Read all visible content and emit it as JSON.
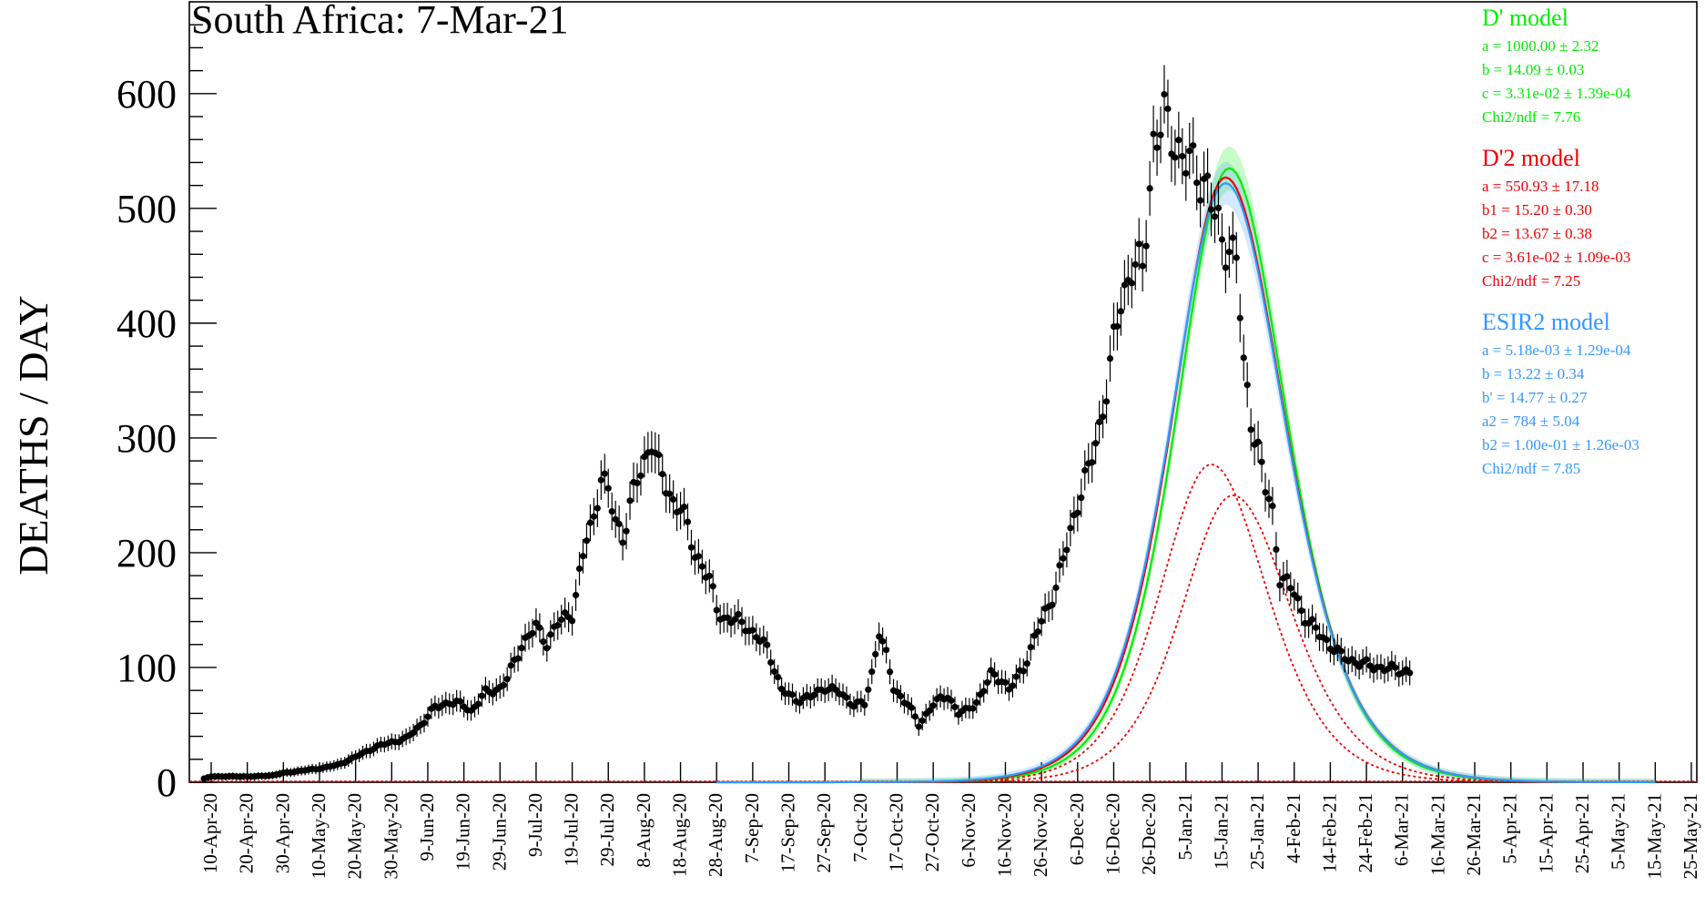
{
  "chart_data": {
    "type": "scatter",
    "title": "South Africa: 7-Mar-21",
    "ylabel": "DEATHS / DAY",
    "xlabel": "",
    "ylim": [
      0,
      680
    ],
    "xlim_days": [
      0,
      410
    ],
    "start_date": "2020-03-31",
    "y_ticks": [
      0,
      100,
      200,
      300,
      400,
      500,
      600
    ],
    "x_tick_labels": [
      "10-Apr-20",
      "20-Apr-20",
      "30-Apr-20",
      "10-May-20",
      "20-May-20",
      "30-May-20",
      "9-Jun-20",
      "19-Jun-20",
      "29-Jun-20",
      "9-Jul-20",
      "19-Jul-20",
      "29-Jul-20",
      "8-Aug-20",
      "18-Aug-20",
      "28-Aug-20",
      "7-Sep-20",
      "17-Sep-20",
      "27-Sep-20",
      "7-Oct-20",
      "17-Oct-20",
      "27-Oct-20",
      "6-Nov-20",
      "16-Nov-20",
      "26-Nov-20",
      "6-Dec-20",
      "16-Dec-20",
      "26-Dec-20",
      "5-Jan-21",
      "15-Jan-21",
      "25-Jan-21",
      "4-Feb-21",
      "14-Feb-21",
      "24-Feb-21",
      "6-Mar-21",
      "16-Mar-21",
      "26-Mar-21",
      "5-Apr-21",
      "15-Apr-21",
      "25-Apr-21",
      "5-May-21",
      "15-May-21",
      "25-May-21"
    ],
    "x_tick_days": [
      10,
      20,
      30,
      40,
      50,
      60,
      70,
      80,
      90,
      100,
      110,
      120,
      130,
      140,
      150,
      160,
      170,
      180,
      190,
      200,
      210,
      220,
      230,
      240,
      250,
      260,
      270,
      280,
      290,
      300,
      310,
      320,
      330,
      340,
      350,
      360,
      370,
      380,
      390,
      400,
      410,
      420
    ],
    "data_anchor_days": [
      8,
      10,
      14,
      18,
      22,
      27,
      30,
      35,
      40,
      45,
      50,
      55,
      60,
      64,
      68,
      72,
      76,
      80,
      82,
      86,
      88,
      90,
      92,
      96,
      100,
      103,
      106,
      110,
      114,
      116,
      118,
      120,
      122,
      124,
      126,
      128,
      130,
      132,
      134,
      138,
      140,
      142,
      144,
      146,
      148,
      150,
      152,
      156,
      158,
      160,
      164,
      166,
      168,
      172,
      176,
      180,
      184,
      188,
      191,
      193,
      195,
      197,
      199,
      201,
      203,
      206,
      210,
      214,
      217,
      219,
      222,
      224,
      226,
      229,
      231,
      235,
      240,
      244,
      247,
      250,
      253,
      256,
      259,
      262,
      265,
      268,
      271,
      274,
      277,
      280,
      282,
      284,
      286,
      288,
      290,
      292,
      294,
      296,
      298,
      300,
      302,
      304,
      306,
      310,
      312,
      314,
      316,
      320,
      323,
      327,
      330,
      334,
      338,
      341,
      342
    ],
    "data_anchor_values": [
      3,
      5,
      5,
      5,
      5,
      6,
      8,
      10,
      12,
      15,
      22,
      30,
      35,
      38,
      50,
      65,
      70,
      67,
      62,
      78,
      80,
      82,
      90,
      120,
      135,
      122,
      138,
      148,
      212,
      230,
      270,
      250,
      228,
      215,
      240,
      262,
      280,
      300,
      272,
      245,
      240,
      220,
      200,
      190,
      175,
      152,
      143,
      140,
      138,
      130,
      117,
      100,
      80,
      72,
      74,
      83,
      78,
      68,
      68,
      95,
      132,
      110,
      82,
      75,
      68,
      50,
      68,
      76,
      60,
      62,
      70,
      80,
      94,
      90,
      80,
      100,
      140,
      170,
      205,
      245,
      270,
      310,
      360,
      420,
      450,
      445,
      560,
      575,
      560,
      540,
      533,
      530,
      520,
      490,
      472,
      470,
      455,
      360,
      320,
      290,
      255,
      235,
      180,
      165,
      150,
      140,
      132,
      120,
      110,
      105,
      102,
      100,
      98,
      97,
      96
    ],
    "models": [
      {
        "name": "D' model",
        "color": "#00ee00",
        "params": [
          "a = 1000.00 ± 2.32",
          "b = 14.09 ± 0.03",
          "c = 3.31e-02 ± 1.39e-04",
          "Chi2/ndf = 7.76"
        ],
        "curve": {
          "amplitude": 535,
          "peak_day": 292,
          "rise_width": 22.5,
          "fall_width": 24.5
        }
      },
      {
        "name": "D'2 model",
        "color": "#ee0000",
        "params": [
          "a = 550.93 ± 17.18",
          "b1 = 15.20 ± 0.30",
          "b2 = 13.67 ± 0.38",
          "c = 3.61e-02 ± 1.09e-03",
          "Chi2/ndf = 7.25"
        ],
        "curve": {
          "amplitude": 527,
          "peak_day": 291,
          "rise_width": 23.0,
          "fall_width": 25.5
        },
        "components": [
          {
            "amplitude": 277,
            "peak_day": 287,
            "rise_width": 22.0,
            "fall_width": 24.0
          },
          {
            "amplitude": 250,
            "peak_day": 293,
            "rise_width": 22.0,
            "fall_width": 25.0
          }
        ]
      },
      {
        "name": "ESIR2 model",
        "color": "#3399ff",
        "params": [
          "a = 5.18e-03 ± 1.29e-04",
          "b = 13.22 ± 0.34",
          "b' = 14.77 ± 0.27",
          "a2 = 784 ± 5.04",
          "b2 = 1.00e-01 ± 1.26e-03",
          "Chi2/ndf = 7.85"
        ],
        "curve": {
          "amplitude": 522,
          "peak_day": 291,
          "rise_width": 23.5,
          "fall_width": 25.5
        }
      }
    ],
    "grid": false,
    "legend_position": "top-right"
  }
}
